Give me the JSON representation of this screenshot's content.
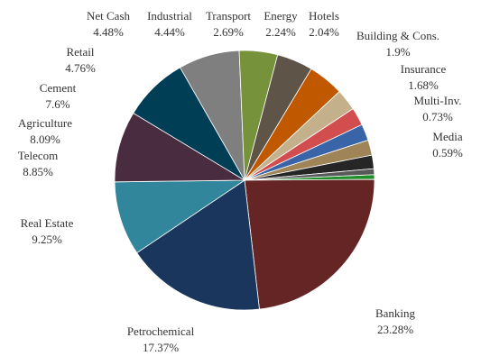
{
  "chart_data": {
    "type": "pie",
    "start_angle_deg": 90,
    "direction": "clockwise",
    "slices": [
      {
        "label": "Media",
        "value_label": "0.59%",
        "value": 0.59,
        "color": "#1f8f2a"
      },
      {
        "label": "Banking",
        "value_label": "23.28%",
        "value": 23.28,
        "color": "#652524"
      },
      {
        "label": "Petrochemical",
        "value_label": "17.37%",
        "value": 17.37,
        "color": "#1b365d"
      },
      {
        "label": "Real Estate",
        "value_label": "9.25%",
        "value": 9.25,
        "color": "#31869b"
      },
      {
        "label": "Telecom",
        "value_label": "8.85%",
        "value": 8.85,
        "color": "#4a2c40"
      },
      {
        "label": "Agriculture",
        "value_label": "8.09%",
        "value": 8.09,
        "color": "#003e56"
      },
      {
        "label": "Cement",
        "value_label": "7.6%",
        "value": 7.6,
        "color": "#7f7f7f"
      },
      {
        "label": "Retail",
        "value_label": "4.76%",
        "value": 4.76,
        "color": "#76933c"
      },
      {
        "label": "Net Cash",
        "value_label": "4.48%",
        "value": 4.48,
        "color": "#5f5448"
      },
      {
        "label": "Industrial",
        "value_label": "4.44%",
        "value": 4.44,
        "color": "#c05800"
      },
      {
        "label": "Transport",
        "value_label": "2.69%",
        "value": 2.69,
        "color": "#c4b08a"
      },
      {
        "label": "Energy",
        "value_label": "2.24%",
        "value": 2.24,
        "color": "#d24e4e"
      },
      {
        "label": "Hotels",
        "value_label": "2.04%",
        "value": 2.04,
        "color": "#3a64a8"
      },
      {
        "label": "Building & Cons.",
        "value_label": "1.9%",
        "value": 1.9,
        "color": "#9e8457"
      },
      {
        "label": "Insurance",
        "value_label": "1.68%",
        "value": 1.68,
        "color": "#262626"
      },
      {
        "label": "Multi-Inv.",
        "value_label": "0.73%",
        "value": 0.73,
        "color": "#595959"
      }
    ]
  }
}
